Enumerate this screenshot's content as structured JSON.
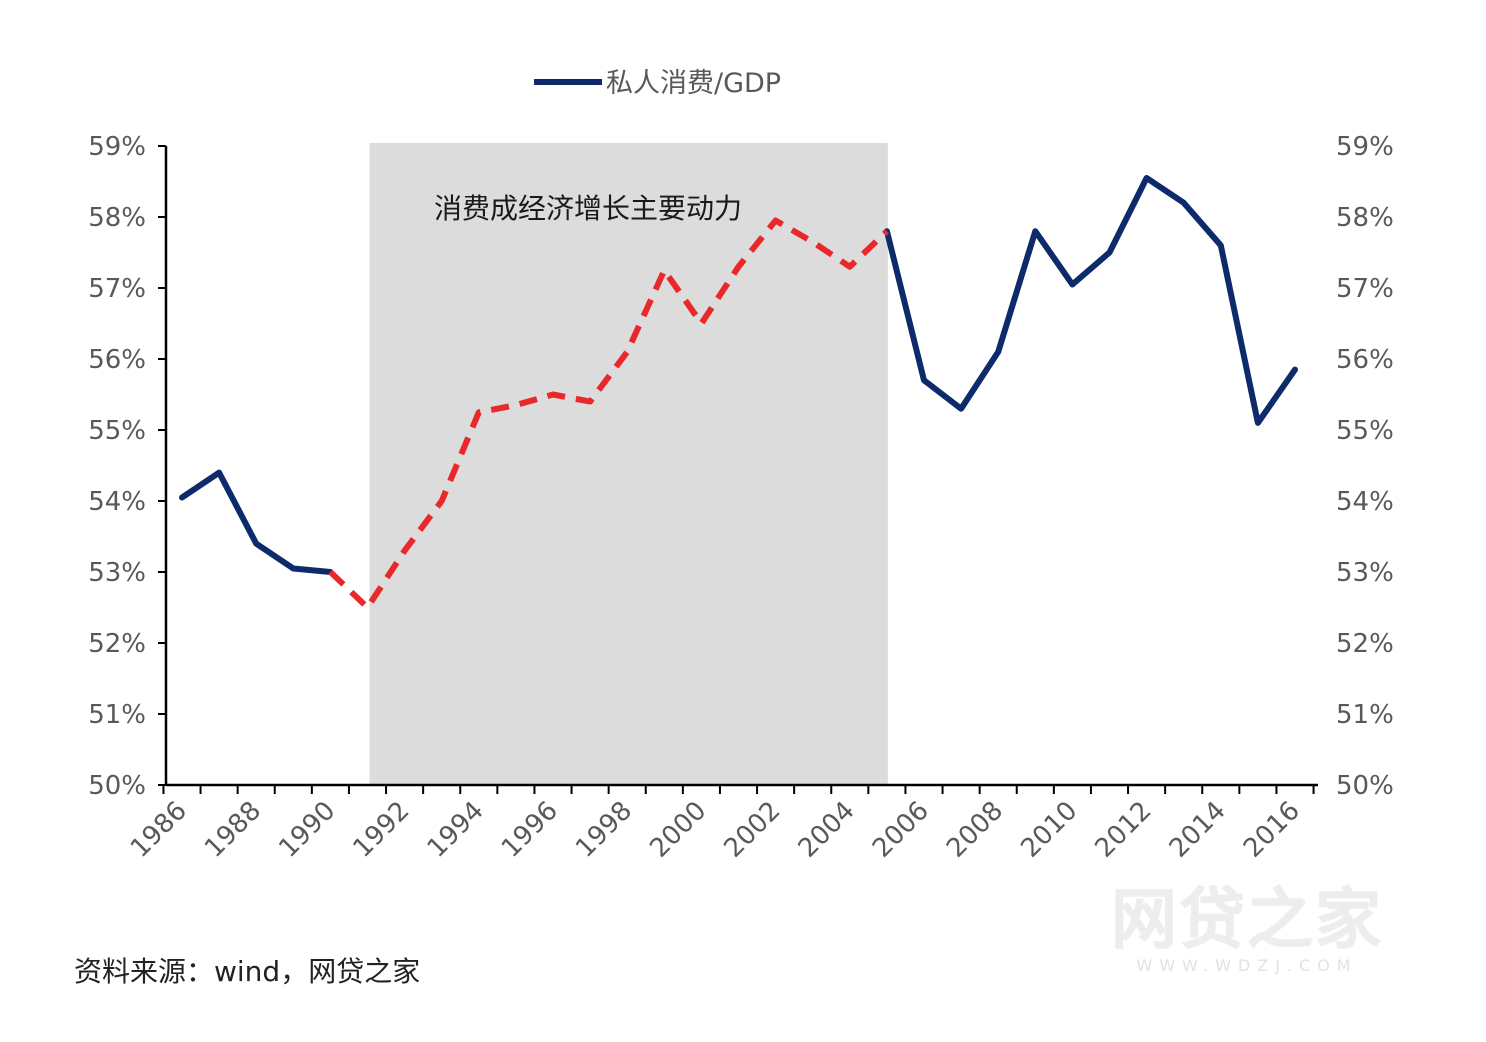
{
  "chart_data": {
    "type": "line",
    "legend": {
      "label": "私人消费/GDP",
      "position": "top-center"
    },
    "annotation": "消费成经济增长主要动力",
    "highlight_range": [
      1991,
      2005
    ],
    "x": [
      1986,
      1987,
      1988,
      1989,
      1990,
      1991,
      1992,
      1993,
      1994,
      1995,
      1996,
      1997,
      1998,
      1999,
      2000,
      2001,
      2002,
      2003,
      2004,
      2005,
      2006,
      2007,
      2008,
      2009,
      2010,
      2011,
      2012,
      2013,
      2014,
      2015,
      2016
    ],
    "series": [
      {
        "name": "私人消费/GDP",
        "color": "#0d2a6b",
        "values": [
          54.05,
          54.4,
          53.4,
          53.05,
          53.0,
          52.5,
          53.3,
          54.0,
          55.25,
          55.35,
          55.5,
          55.4,
          56.1,
          57.25,
          56.5,
          57.3,
          57.95,
          57.65,
          57.3,
          57.8,
          55.7,
          55.3,
          56.1,
          57.8,
          57.05,
          57.5,
          58.55,
          58.2,
          57.6,
          55.1,
          55.85
        ]
      }
    ],
    "highlight_segment": {
      "from": 1990,
      "to": 2005,
      "color": "#e8282b",
      "style": "dashed"
    },
    "x_tick_labels": [
      "1986",
      "1988",
      "1990",
      "1992",
      "1994",
      "1996",
      "1998",
      "2000",
      "2002",
      "2004",
      "2006",
      "2008",
      "2010",
      "2012",
      "2014",
      "2016"
    ],
    "y_tick_labels": [
      "50%",
      "51%",
      "52%",
      "53%",
      "54%",
      "55%",
      "56%",
      "57%",
      "58%",
      "59%"
    ],
    "ylim": [
      50,
      59
    ],
    "y_unit": "%",
    "grid": false,
    "secondary_y_axis": true
  },
  "source": "资料来源：wind，网贷之家",
  "watermark": {
    "main": "网贷之家",
    "sub": "WWW.WDZJ.COM"
  }
}
